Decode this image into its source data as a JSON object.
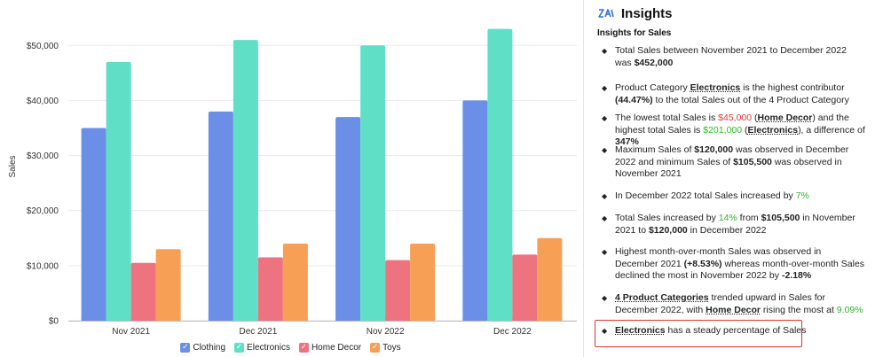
{
  "chart_data": {
    "type": "bar",
    "categories": [
      "Nov 2021",
      "Dec 2021",
      "Nov 2022",
      "Dec 2022"
    ],
    "series": [
      {
        "name": "Clothing",
        "values": [
          35000,
          38000,
          37000,
          40000
        ]
      },
      {
        "name": "Electronics",
        "values": [
          47000,
          51000,
          50000,
          53000
        ]
      },
      {
        "name": "Home Decor",
        "values": [
          10500,
          11500,
          11000,
          12000
        ]
      },
      {
        "name": "Toys",
        "values": [
          13000,
          14000,
          14000,
          15000
        ]
      }
    ],
    "colors": [
      "#6b8ee6",
      "#5fdfc6",
      "#ee7380",
      "#f79f55"
    ],
    "ylabel": "Sales",
    "yticks": [
      "$0",
      "$10,000",
      "$20,000",
      "$30,000",
      "$40,000",
      "$50,000"
    ],
    "ytick_values": [
      0,
      10000,
      20000,
      30000,
      40000,
      50000
    ],
    "ylim": [
      0,
      56000
    ],
    "grid": true,
    "legend": "bottom"
  },
  "insights": {
    "title": "Insights",
    "subtitle": "Insights for Sales",
    "items": [
      [
        {
          "t": "Total Sales between November 2021 to December 2022 was "
        },
        {
          "t": "$452,000",
          "c": "b"
        }
      ],
      [
        {
          "t": "Product Category "
        },
        {
          "t": "Electronics",
          "c": "ul"
        },
        {
          "t": " is the highest contributor "
        },
        {
          "t": "(44.47%)",
          "c": "b"
        },
        {
          "t": " to the total Sales out of the 4 Product Category"
        }
      ],
      [
        {
          "t": "The lowest total Sales is "
        },
        {
          "t": "$45,000",
          "c": "red"
        },
        {
          "t": " ("
        },
        {
          "t": "Home Decor",
          "c": "ul"
        },
        {
          "t": ") and the highest total Sales is "
        },
        {
          "t": "$201,000",
          "c": "green"
        },
        {
          "t": " ("
        },
        {
          "t": "Electronics",
          "c": "ul"
        },
        {
          "t": "), a difference of "
        },
        {
          "t": "347%",
          "c": "b"
        }
      ],
      [
        {
          "t": "Maximum Sales of "
        },
        {
          "t": "$120,000",
          "c": "b"
        },
        {
          "t": " was observed in December 2022 and minimum Sales of "
        },
        {
          "t": "$105,500",
          "c": "b"
        },
        {
          "t": " was observed in November 2021"
        }
      ],
      [
        {
          "t": "In December 2022 total Sales increased by "
        },
        {
          "t": "7%",
          "c": "green"
        }
      ],
      [
        {
          "t": "Total Sales increased by "
        },
        {
          "t": "14%",
          "c": "green"
        },
        {
          "t": " from "
        },
        {
          "t": "$105,500",
          "c": "b"
        },
        {
          "t": " in November 2021 to "
        },
        {
          "t": "$120,000",
          "c": "b"
        },
        {
          "t": " in December 2022"
        }
      ],
      [
        {
          "t": "Highest month-over-month Sales was observed in December 2021 "
        },
        {
          "t": "(+8.53%)",
          "c": "b"
        },
        {
          "t": " whereas month-over-month Sales declined the most in November 2022 by "
        },
        {
          "t": "-2.18%",
          "c": "b"
        }
      ],
      [
        {
          "t": "4 Product Categories",
          "c": "ul"
        },
        {
          "t": " trended upward in Sales for December 2022, with "
        },
        {
          "t": "Home Decor",
          "c": "ul"
        },
        {
          "t": " rising the most at "
        },
        {
          "t": "9.09%",
          "c": "green"
        }
      ],
      [
        {
          "t": "Electronics",
          "c": "ul"
        },
        {
          "t": " has a steady percentage of Sales"
        }
      ]
    ]
  }
}
